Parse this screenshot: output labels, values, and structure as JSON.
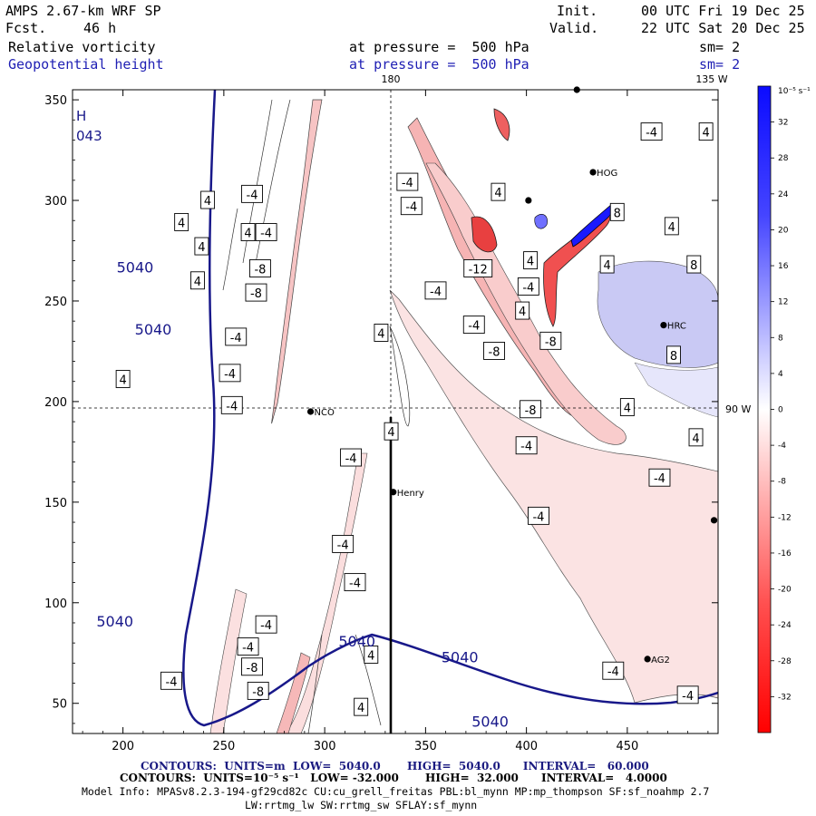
{
  "header": {
    "model": "AMPS 2.67-km WRF SP",
    "fcst_label": "Fcst.",
    "fcst_value": "46 h",
    "init_label": "Init.",
    "init_value": "00 UTC Fri 19 Dec 25",
    "valid_label": "Valid.",
    "valid_value": "22 UTC Sat 20 Dec 25",
    "field1_name": "Relative vorticity",
    "field1_level": "at pressure =  500 hPa",
    "field1_sm": "sm= 2",
    "field2_name": "Geopotential height",
    "field2_level": "at pressure =  500 hPa",
    "field2_sm": "sm= 2"
  },
  "footer": {
    "contours1": "CONTOURS:  UNITS=m  LOW=  5040.0       HIGH=  5040.0      INTERVAL=   60.000",
    "contours2": "CONTOURS:  UNITS=10⁻⁵ s⁻¹   LOW= -32.000       HIGH=  32.000      INTERVAL=   4.0000",
    "model_info1": "Model Info: MPASv8.2.3-194-gf29cd82c CU:cu_grell_freitas PBL:bl_mynn MP:mp_thompson SF:sf_noahmp 2.7",
    "model_info2": "LW:rrtmg_lw SW:rrtmg_sw SFLAY:sf_mynn"
  },
  "map_labels": {
    "lon_180": "180",
    "lon_135w": "135 W",
    "lon_90w": "90 W",
    "high_marker": "H",
    "high_value": "043"
  },
  "stations": [
    {
      "name": "HOG",
      "x": 433,
      "y": 314
    },
    {
      "name": "HRC",
      "x": 468,
      "y": 238
    },
    {
      "name": "NCO",
      "x": 293,
      "y": 195
    },
    {
      "name": "Henry",
      "x": 334,
      "y": 155
    },
    {
      "name": "AG2",
      "x": 460,
      "y": 72
    },
    {
      "name": "",
      "x": 401,
      "y": 300
    },
    {
      "name": "",
      "x": 425,
      "y": 355
    },
    {
      "name": "",
      "x": 493,
      "y": 141
    }
  ],
  "chart_data": {
    "type": "heatmap",
    "title": "Relative vorticity at pressure = 500 hPa; Geopotential height at pressure = 500 hPa",
    "xlim": [
      175,
      495
    ],
    "ylim": [
      35,
      355
    ],
    "x_ticks": [
      200,
      250,
      300,
      350,
      400,
      450
    ],
    "y_ticks": [
      50,
      100,
      150,
      200,
      250,
      300,
      350
    ],
    "colorbar": {
      "units": "10⁻⁵ s⁻¹",
      "range": [
        -36,
        36
      ],
      "ticks": [
        -32,
        -28,
        -24,
        -20,
        -16,
        -12,
        -8,
        -4,
        0,
        4,
        8,
        12,
        16,
        20,
        24,
        28,
        32
      ],
      "negative_color": "#ff1a1a",
      "positive_color": "#1a1aff"
    },
    "height_contours": {
      "units": "m",
      "low": 5040.0,
      "high": 5040.0,
      "interval": 60.0,
      "color": "#18188a",
      "labels": [
        {
          "text": "5040",
          "x": 206,
          "y": 267
        },
        {
          "text": "5040",
          "x": 215,
          "y": 236
        },
        {
          "text": "5040",
          "x": 196,
          "y": 91
        },
        {
          "text": "5040",
          "x": 316,
          "y": 81
        },
        {
          "text": "5040",
          "x": 367,
          "y": 73
        },
        {
          "text": "5040",
          "x": 382,
          "y": 41
        }
      ]
    },
    "vorticity_contours": {
      "units": "10⁻⁵ s⁻¹",
      "low": -32.0,
      "high": 32.0,
      "interval": 4.0,
      "labels": [
        {
          "text": "4",
          "x": 242,
          "y": 300
        },
        {
          "text": "4",
          "x": 229,
          "y": 289
        },
        {
          "text": "4",
          "x": 262,
          "y": 284
        },
        {
          "text": "-4",
          "x": 264,
          "y": 303
        },
        {
          "text": "-4",
          "x": 271,
          "y": 284
        },
        {
          "text": "4",
          "x": 239,
          "y": 277
        },
        {
          "text": "4",
          "x": 237,
          "y": 260
        },
        {
          "text": "-8",
          "x": 268,
          "y": 266
        },
        {
          "text": "-8",
          "x": 266,
          "y": 254
        },
        {
          "text": "-4",
          "x": 256,
          "y": 232
        },
        {
          "text": "-4",
          "x": 253,
          "y": 214
        },
        {
          "text": "-4",
          "x": 254,
          "y": 198
        },
        {
          "text": "4",
          "x": 200,
          "y": 211
        },
        {
          "text": "4",
          "x": 328,
          "y": 234
        },
        {
          "text": "4",
          "x": 333,
          "y": 185
        },
        {
          "text": "-4",
          "x": 313,
          "y": 172
        },
        {
          "text": "-4",
          "x": 309,
          "y": 129
        },
        {
          "text": "-4",
          "x": 315,
          "y": 110
        },
        {
          "text": "-4",
          "x": 271,
          "y": 89
        },
        {
          "text": "-4",
          "x": 262,
          "y": 78
        },
        {
          "text": "-8",
          "x": 264,
          "y": 68
        },
        {
          "text": "-8",
          "x": 267,
          "y": 56
        },
        {
          "text": "-4",
          "x": 224,
          "y": 61
        },
        {
          "text": "4",
          "x": 323,
          "y": 74
        },
        {
          "text": "4",
          "x": 318,
          "y": 48
        },
        {
          "text": "-4",
          "x": 341,
          "y": 309
        },
        {
          "text": "-4",
          "x": 343,
          "y": 297
        },
        {
          "text": "4",
          "x": 386,
          "y": 304
        },
        {
          "text": "-12",
          "x": 376,
          "y": 266
        },
        {
          "text": "-4",
          "x": 355,
          "y": 255
        },
        {
          "text": "-4",
          "x": 374,
          "y": 238
        },
        {
          "text": "-8",
          "x": 384,
          "y": 225
        },
        {
          "text": "4",
          "x": 402,
          "y": 270
        },
        {
          "text": "-4",
          "x": 401,
          "y": 257
        },
        {
          "text": "4",
          "x": 398,
          "y": 245
        },
        {
          "text": "-8",
          "x": 412,
          "y": 230
        },
        {
          "text": "-8",
          "x": 402,
          "y": 196
        },
        {
          "text": "-4",
          "x": 400,
          "y": 178
        },
        {
          "text": "-4",
          "x": 406,
          "y": 143
        },
        {
          "text": "4",
          "x": 440,
          "y": 268
        },
        {
          "text": "-4",
          "x": 462,
          "y": 334
        },
        {
          "text": "4",
          "x": 489,
          "y": 334
        },
        {
          "text": "8",
          "x": 445,
          "y": 294
        },
        {
          "text": "4",
          "x": 472,
          "y": 287
        },
        {
          "text": "8",
          "x": 483,
          "y": 268
        },
        {
          "text": "8",
          "x": 473,
          "y": 223
        },
        {
          "text": "4",
          "x": 450,
          "y": 197
        },
        {
          "text": "4",
          "x": 484,
          "y": 182
        },
        {
          "text": "-4",
          "x": 466,
          "y": 162
        },
        {
          "text": "-4",
          "x": 443,
          "y": 66
        },
        {
          "text": "-4",
          "x": 480,
          "y": 54
        }
      ]
    }
  }
}
